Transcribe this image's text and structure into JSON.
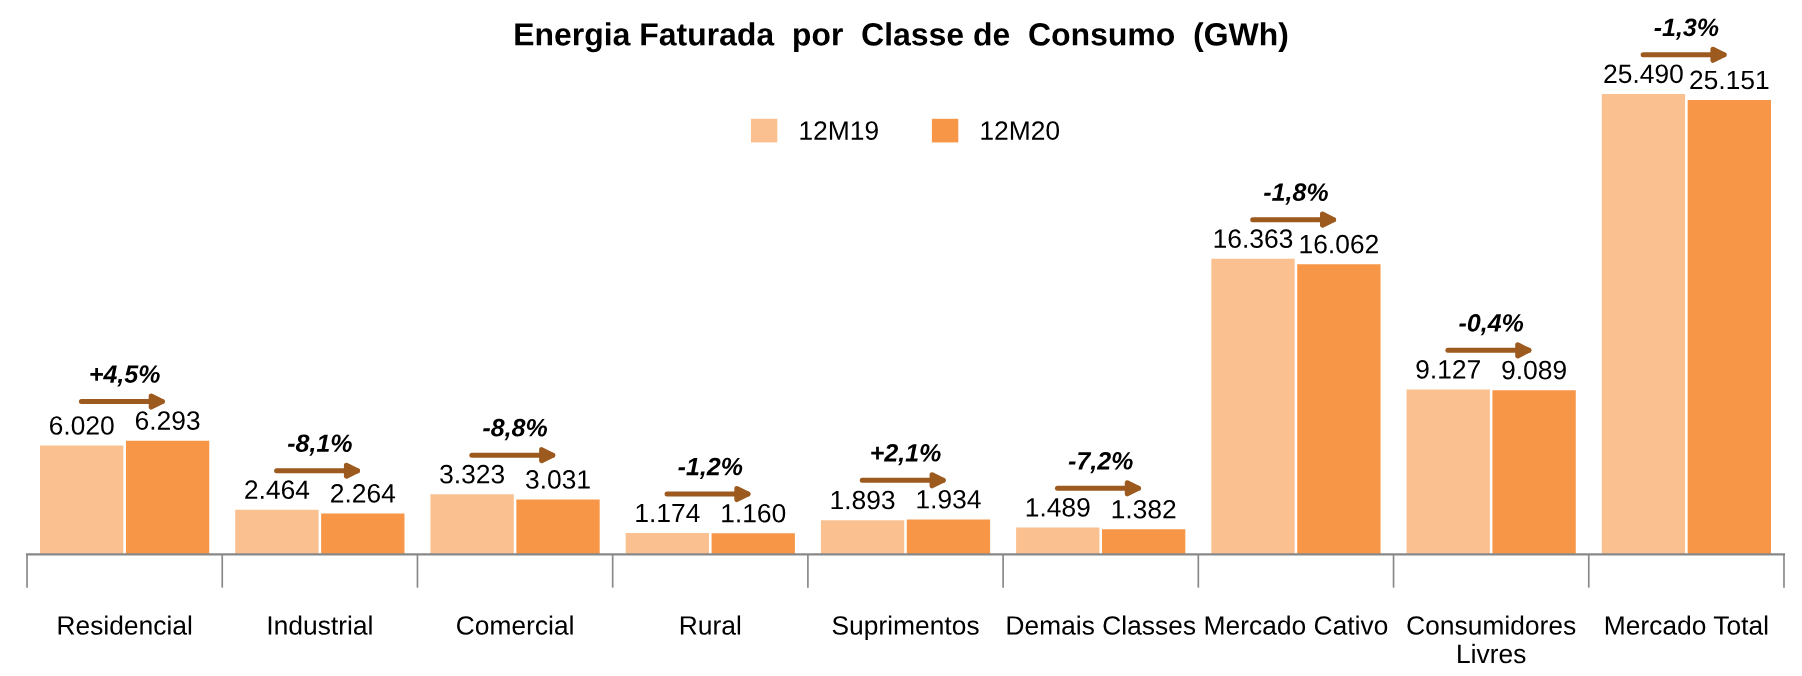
{
  "chart_data": {
    "type": "bar",
    "title": "Energia Faturada  por  Classe de  Consumo  (GWh)",
    "categories": [
      "Residencial",
      "Industrial",
      "Comercial",
      "Rural",
      "Suprimentos",
      "Demais Classes",
      "Mercado Cativo",
      "Consumidores\nLivres",
      "Mercado Total"
    ],
    "series": [
      {
        "name": "12M19",
        "color": "#fac090",
        "values": [
          6020,
          2464,
          3323,
          1174,
          1893,
          1489,
          16363,
          9127,
          25490
        ],
        "value_labels": [
          "6.020",
          "2.464",
          "3.323",
          "1.174",
          "1.893",
          "1.489",
          "16.363",
          "9.127",
          "25.490"
        ]
      },
      {
        "name": "12M20",
        "color": "#f79646",
        "values": [
          6293,
          2264,
          3031,
          1160,
          1934,
          1382,
          16062,
          9089,
          25151
        ],
        "value_labels": [
          "6.293",
          "2.264",
          "3.031",
          "1.160",
          "1.934",
          "1.382",
          "16.062",
          "9.089",
          "25.151"
        ]
      }
    ],
    "annotations": [
      "+4,5%",
      "-8,1%",
      "-8,8%",
      "-1,2%",
      "+2,1%",
      "-7,2%",
      "-1,8%",
      "-0,4%",
      "-1,3%"
    ],
    "legend": "top",
    "grid": false
  }
}
